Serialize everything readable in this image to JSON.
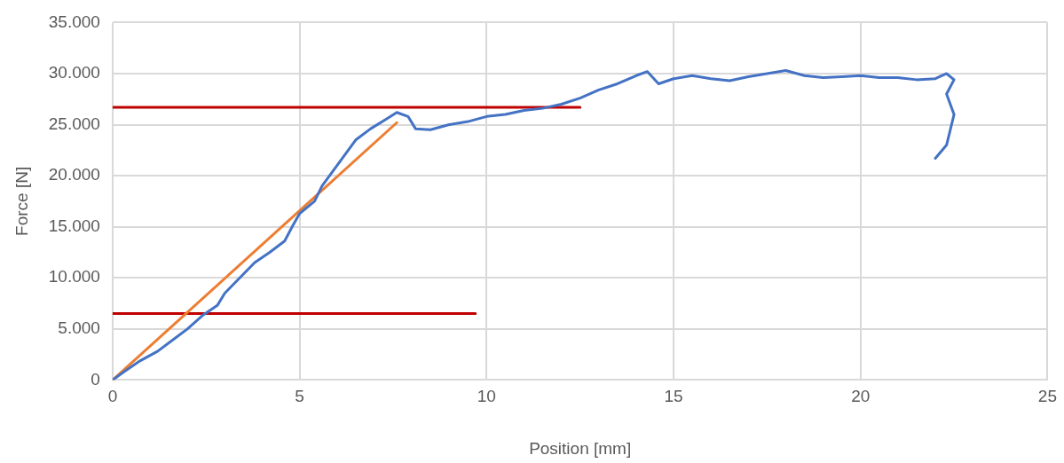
{
  "chart_data": {
    "type": "line",
    "xlabel": "Position [mm]",
    "ylabel": "Force [N]",
    "xlim": [
      0,
      25
    ],
    "xticks": [
      0,
      5,
      10,
      15,
      20,
      25
    ],
    "ylim": [
      0,
      35000
    ],
    "yticks": [
      0,
      {
        "value": 5000,
        "label": "5.000"
      },
      {
        "value": 10000,
        "label": "10.000"
      },
      {
        "value": 15000,
        "label": "15.000"
      },
      {
        "value": 20000,
        "label": "20.000"
      },
      {
        "value": 25000,
        "label": "25.000"
      },
      {
        "value": 30000,
        "label": "30.000"
      },
      {
        "value": 35000,
        "label": "35.000"
      }
    ],
    "grid": true,
    "legend": false,
    "marker": "none",
    "line_style": "solid",
    "series": [
      {
        "color": "#4472c4",
        "x": [
          0,
          0.3,
          0.7,
          1.2,
          1.6,
          2.0,
          2.4,
          2.8,
          3.0,
          3.4,
          3.8,
          4.2,
          4.6,
          4.8,
          5.0,
          5.4,
          5.6,
          5.9,
          6.2,
          6.5,
          6.9,
          7.3,
          7.6,
          7.9,
          8.1,
          8.5,
          9.0,
          9.5,
          10.0,
          10.5,
          11.0,
          11.5,
          12.0,
          12.5,
          13.0,
          13.5,
          14.0,
          14.3,
          14.6,
          15.0,
          15.5,
          16.0,
          16.5,
          17.0,
          17.5,
          18.0,
          18.5,
          19.0,
          19.5,
          20.0,
          20.5,
          21.0,
          21.5,
          22.0,
          22.3,
          22.5,
          22.3,
          22.5,
          22.4,
          22.3,
          22.0
        ],
        "values": [
          0,
          800,
          1800,
          2800,
          3900,
          5000,
          6300,
          7300,
          8500,
          10000,
          11500,
          12500,
          13600,
          15000,
          16300,
          17500,
          19000,
          20500,
          22000,
          23500,
          24600,
          25500,
          26200,
          25800,
          24600,
          24500,
          25000,
          25300,
          25800,
          26000,
          26400,
          26600,
          27000,
          27600,
          28400,
          29000,
          29800,
          30200,
          29000,
          29500,
          29800,
          29500,
          29300,
          29700,
          30000,
          30300,
          29800,
          29600,
          29700,
          29800,
          29600,
          29600,
          29400,
          29500,
          30000,
          29400,
          28000,
          26000,
          24500,
          23000,
          21700
        ]
      },
      {
        "color": "#ed7d31",
        "x": [
          0,
          7.6
        ],
        "values": [
          0,
          25200
        ]
      },
      {
        "color": "#c00000",
        "x": [
          0,
          12.5
        ],
        "values": [
          26700,
          26700
        ]
      },
      {
        "color": "#c00000",
        "x": [
          0,
          9.7
        ],
        "values": [
          6500,
          6500
        ]
      }
    ]
  }
}
